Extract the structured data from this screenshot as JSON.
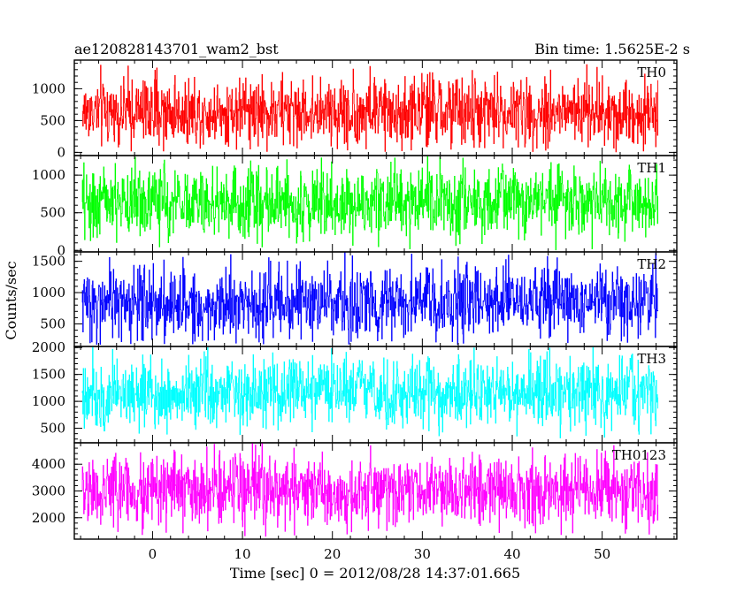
{
  "header": {
    "left_title": "ae120828143701_wam2_bst",
    "right_title": "Bin time: 1.5625E-2 s"
  },
  "chart_data": {
    "type": "line",
    "title": "ae120828143701_wam2_bst",
    "bin_time": "Bin time: 1.5625E-2 s",
    "xlabel": "Time [sec] 0 = 2012/08/28 14:37:01.665",
    "ylabel": "Counts/sec",
    "xlim": [
      -8.7,
      58.3
    ],
    "x_data_range": [
      -7.8,
      56.2
    ],
    "x_ticks": [
      0,
      10,
      20,
      30,
      40,
      50
    ],
    "x_tick_labels": [
      "0",
      "10",
      "20",
      "30",
      "40",
      "50"
    ],
    "grid": false,
    "legend": "none",
    "series": [
      {
        "name": "TH0",
        "color": "#ff0000",
        "ylim": [
          -50,
          1450
        ],
        "y_ticks": [
          0,
          500,
          1000
        ],
        "y_tick_labels": [
          "0",
          "500",
          "1000"
        ],
        "approx_mean": 640,
        "approx_min": 0,
        "approx_max": 1450
      },
      {
        "name": "TH1",
        "color": "#00ff00",
        "ylim": [
          -20,
          1260
        ],
        "y_ticks": [
          0,
          500,
          1000
        ],
        "y_tick_labels": [
          "0",
          "500",
          "1000"
        ],
        "approx_mean": 640,
        "approx_min": 0,
        "approx_max": 1260
      },
      {
        "name": "TH2",
        "color": "#0000ff",
        "ylim": [
          140,
          1650
        ],
        "y_ticks": [
          500,
          1000,
          1500
        ],
        "y_tick_labels": [
          "500",
          "1000",
          "1500"
        ],
        "approx_mean": 840,
        "approx_min": 150,
        "approx_max": 1650
      },
      {
        "name": "TH3",
        "color": "#00ffff",
        "ylim": [
          230,
          2020
        ],
        "y_ticks": [
          500,
          1000,
          1500,
          2000
        ],
        "y_tick_labels": [
          "500",
          "1000",
          "1500",
          "2000"
        ],
        "approx_mean": 1150,
        "approx_min": 300,
        "approx_max": 2020
      },
      {
        "name": "TH0123",
        "color": "#ff00ff",
        "ylim": [
          1200,
          4800
        ],
        "y_ticks": [
          2000,
          3000,
          4000
        ],
        "y_tick_labels": [
          "2000",
          "3000",
          "4000"
        ],
        "approx_mean": 3000,
        "approx_min": 1250,
        "approx_max": 4800
      }
    ]
  }
}
